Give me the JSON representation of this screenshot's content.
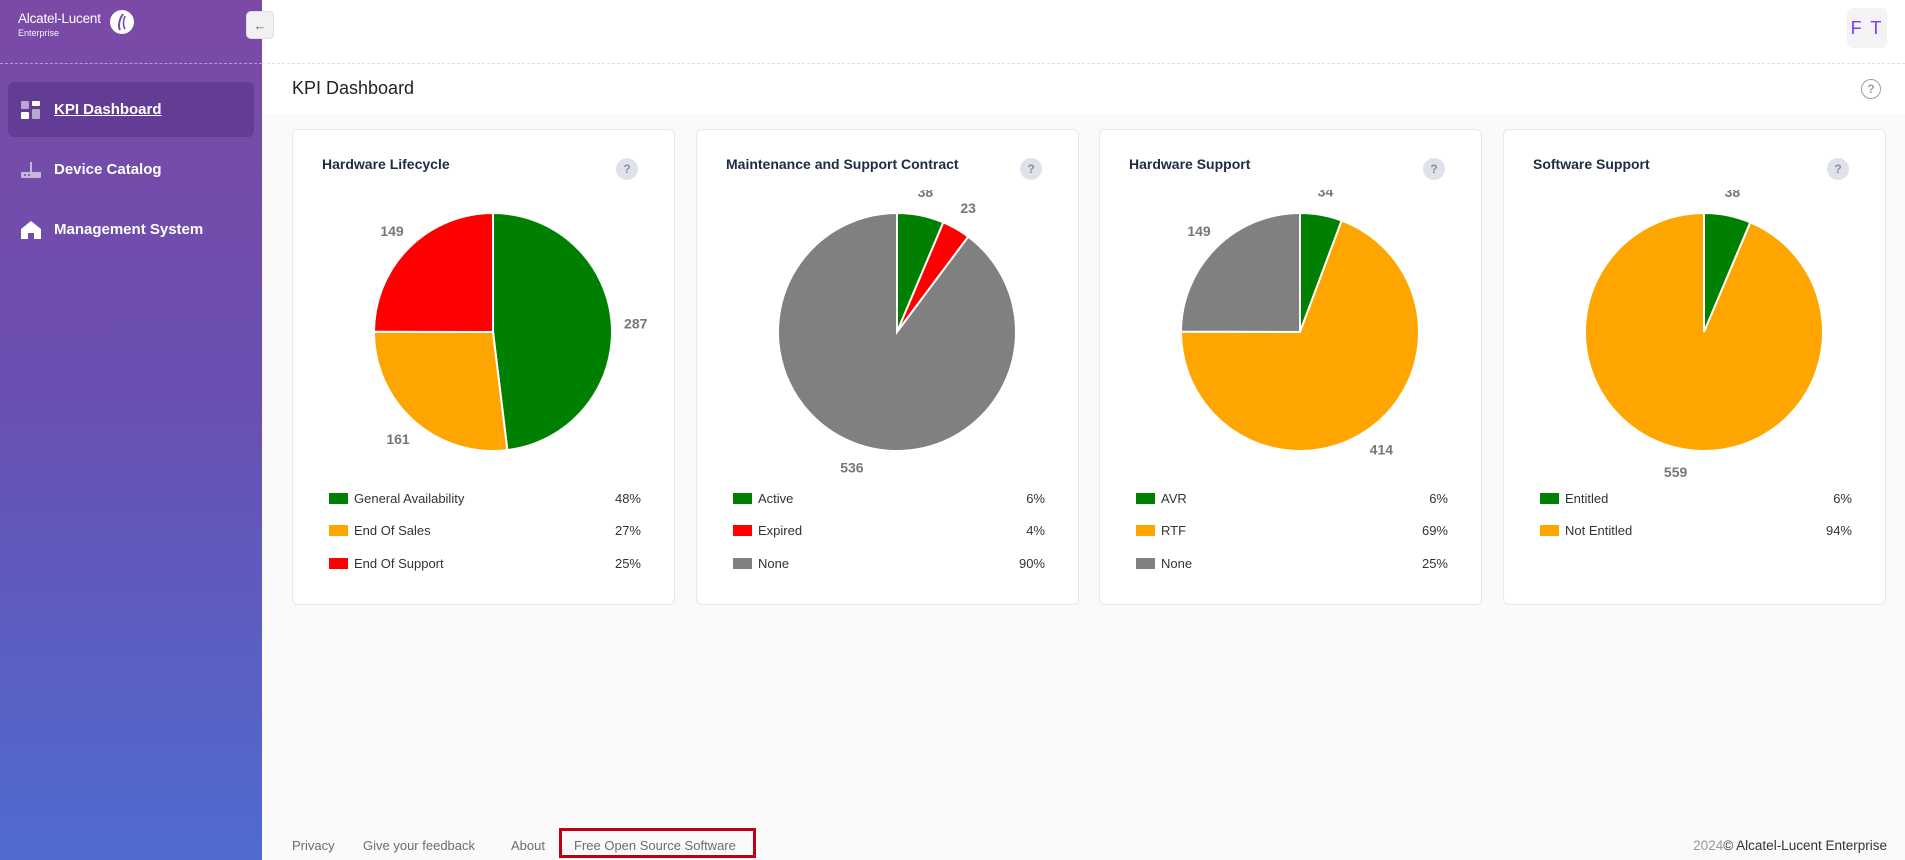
{
  "app": {
    "brand": "Alcatel-Lucent",
    "brand_sub": "Enterprise"
  },
  "user": {
    "initials": "F T"
  },
  "sidebar": {
    "items": [
      {
        "label": "KPI Dashboard",
        "icon": "dashboard-icon",
        "active": true
      },
      {
        "label": "Device Catalog",
        "icon": "router-icon",
        "active": false
      },
      {
        "label": "Management System",
        "icon": "home-icon",
        "active": false
      }
    ]
  },
  "page": {
    "title": "KPI Dashboard"
  },
  "colors": {
    "green": "#008000",
    "orange": "#ffa500",
    "red": "#ff0000",
    "gray": "#808080",
    "accent": "#7c3aed"
  },
  "chart_data": [
    {
      "type": "pie",
      "title": "Hardware Lifecycle",
      "slices": [
        {
          "name": "General Availability",
          "value": 287,
          "pct": "48%",
          "color": "#008000"
        },
        {
          "name": "End Of Sales",
          "value": 161,
          "pct": "27%",
          "color": "#ffa500"
        },
        {
          "name": "End Of Support",
          "value": 149,
          "pct": "25%",
          "color": "#ff0000"
        }
      ]
    },
    {
      "type": "pie",
      "title": "Maintenance and Support Contract",
      "slices": [
        {
          "name": "Active",
          "value": 38,
          "pct": "6%",
          "color": "#008000"
        },
        {
          "name": "Expired",
          "value": 23,
          "pct": "4%",
          "color": "#ff0000"
        },
        {
          "name": "None",
          "value": 536,
          "pct": "90%",
          "color": "#808080"
        }
      ]
    },
    {
      "type": "pie",
      "title": "Hardware Support",
      "slices": [
        {
          "name": "AVR",
          "value": 34,
          "pct": "6%",
          "color": "#008000"
        },
        {
          "name": "RTF",
          "value": 414,
          "pct": "69%",
          "color": "#ffa500"
        },
        {
          "name": "None",
          "value": 149,
          "pct": "25%",
          "color": "#808080"
        }
      ]
    },
    {
      "type": "pie",
      "title": "Software Support",
      "slices": [
        {
          "name": "Entitled",
          "value": 38,
          "pct": "6%",
          "color": "#008000"
        },
        {
          "name": "Not Entitled",
          "value": 559,
          "pct": "94%",
          "color": "#ffa500"
        }
      ]
    }
  ],
  "footer": {
    "links": [
      "Privacy",
      "Give your feedback",
      "About",
      "Free Open Source Software"
    ],
    "year": "2024",
    "copyright": "© Alcatel-Lucent Enterprise"
  }
}
